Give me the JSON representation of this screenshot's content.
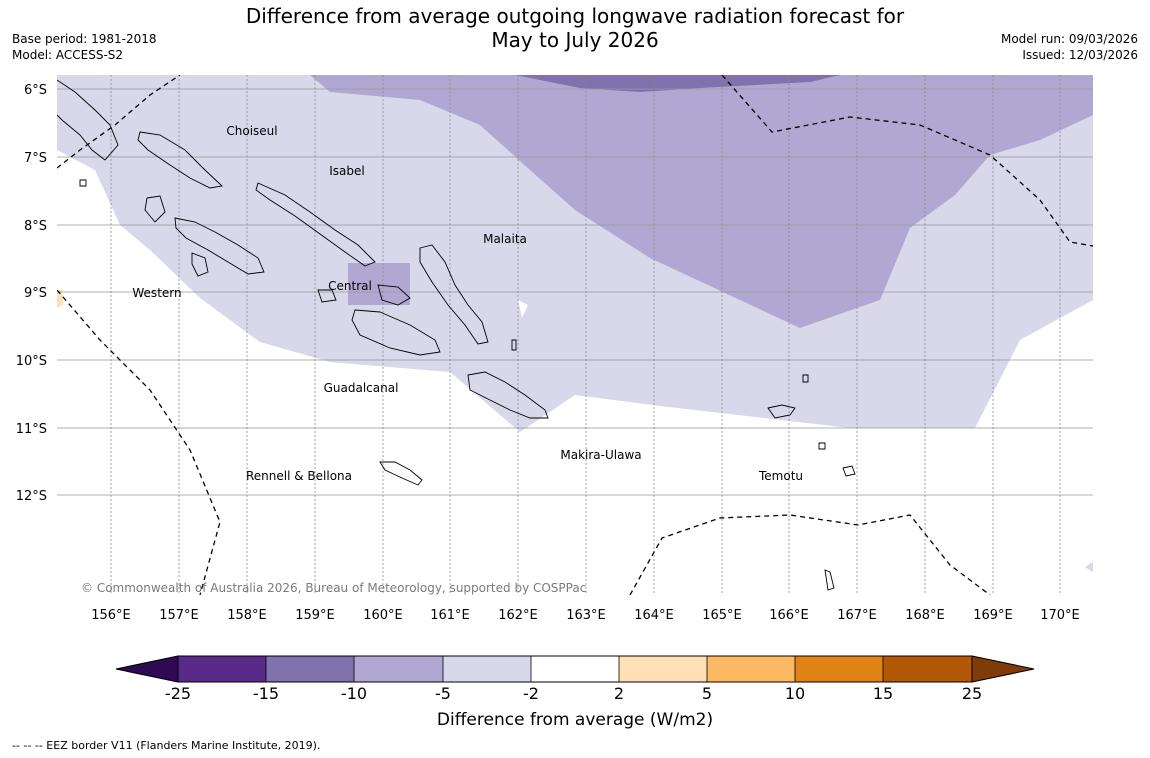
{
  "header": {
    "title_line1": "Difference from average outgoing longwave radiation forecast for",
    "title_line2": "May to July 2026",
    "base_period": "Base period: 1981-2018",
    "model": "Model: ACCESS-S2",
    "model_run": "Model run: 09/03/2026",
    "issued": "Issued: 12/03/2026"
  },
  "map": {
    "lat_labels": [
      "6°S",
      "7°S",
      "8°S",
      "9°S",
      "10°S",
      "11°S",
      "12°S"
    ],
    "lon_labels": [
      "156°E",
      "157°E",
      "158°E",
      "159°E",
      "160°E",
      "161°E",
      "162°E",
      "163°E",
      "164°E",
      "165°E",
      "166°E",
      "167°E",
      "168°E",
      "169°E",
      "170°E"
    ],
    "places": {
      "choiseul": "Choiseul",
      "isabel": "Isabel",
      "malaita": "Malaita",
      "western": "Western",
      "central": "Central",
      "guadalcanal": "Guadalcanal",
      "rennell": "Rennell & Bellona",
      "makira": "Makira-Ulawa",
      "temotu": "Temotu"
    },
    "copyright": "© Commonwealth of Australia 2026, Bureau of Meteorology, supported by COSPPac"
  },
  "colorbar": {
    "ticks": [
      "-25",
      "-15",
      "-10",
      "-5",
      "-2",
      "2",
      "5",
      "10",
      "15",
      "25"
    ],
    "colors": [
      "#2d0a53",
      "#5a2a8a",
      "#8072ad",
      "#b0a8d2",
      "#d8d8ea",
      "#ffffff",
      "#fee0b6",
      "#fdb863",
      "#e08214",
      "#b35806",
      "#7f3b08"
    ],
    "label": "Difference from average (W/m2)"
  },
  "footer": {
    "eez_note": "--  --  -- EEZ border V11 (Flanders Marine Institute, 2019)."
  }
}
